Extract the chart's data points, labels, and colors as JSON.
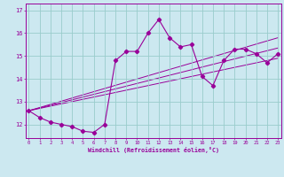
{
  "xlabel": "Windchill (Refroidissement éolien,°C)",
  "bg_color": "#cce8f0",
  "line_color": "#990099",
  "grid_color": "#99cccc",
  "x_data": [
    0,
    1,
    2,
    3,
    4,
    5,
    6,
    7,
    8,
    9,
    10,
    11,
    12,
    13,
    14,
    15,
    16,
    17,
    18,
    19,
    20,
    21,
    22,
    23
  ],
  "y_main": [
    12.6,
    12.3,
    12.1,
    12.0,
    11.9,
    11.7,
    11.65,
    12.0,
    14.8,
    15.2,
    15.2,
    16.0,
    16.6,
    15.8,
    15.4,
    15.5,
    14.1,
    13.7,
    14.8,
    15.3,
    15.3,
    15.1,
    14.7,
    15.1
  ],
  "trend1_x": [
    0,
    23
  ],
  "trend1_y": [
    12.6,
    14.9
  ],
  "trend2_x": [
    0,
    23
  ],
  "trend2_y": [
    12.6,
    15.35
  ],
  "trend3_x": [
    0,
    23
  ],
  "trend3_y": [
    12.6,
    15.8
  ],
  "yticks": [
    12,
    13,
    14,
    15,
    16,
    17
  ],
  "ylim": [
    11.4,
    17.3
  ],
  "xlim": [
    -0.3,
    23.3
  ]
}
